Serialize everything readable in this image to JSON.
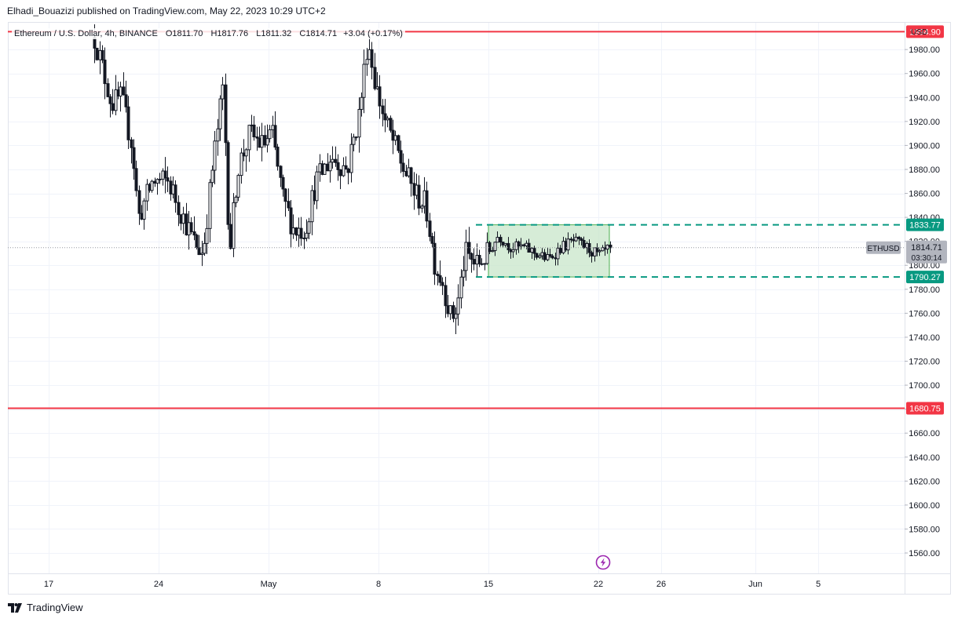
{
  "publisher": "Elhadi_Bouazizi published on TradingView.com, May 22, 2023 10:29 UTC+2",
  "legend": {
    "symbol": "Ethereum / U.S. Dollar, 4h, BINANCE",
    "o_label": "O",
    "o": "1811.70",
    "h_label": "H",
    "h": "1817.76",
    "l_label": "L",
    "l": "1811.32",
    "c_label": "C",
    "c": "1814.71",
    "change": "+3.04 (+0.17%)"
  },
  "currency": "USD",
  "footer_logo": "TradingView",
  "colors": {
    "resistance": "#f23645",
    "range": "#089981",
    "range_fill": "#c8e6c9",
    "candle": "#131722",
    "price_tag": "#b2b5be",
    "event_icon": "#9c27b0"
  },
  "chart_data": {
    "type": "candlestick",
    "symbol_tag": "ETHUSD",
    "last_price": 1814.71,
    "last_price_label": "1814.71",
    "countdown": "03:30:14",
    "ylim": [
      1543,
      2003
    ],
    "y_ticks": [
      1560,
      1580,
      1600,
      1620,
      1640,
      1660,
      1680,
      1700,
      1720,
      1740,
      1760,
      1780,
      1800,
      1820,
      1840,
      1860,
      1880,
      1900,
      1920,
      1940,
      1960,
      1980
    ],
    "y_tick_labels": [
      "1560.00",
      "1580.00",
      "1600.00",
      "1620.00",
      "1640.00",
      "1660.00",
      "1680.00",
      "1700.00",
      "1720.00",
      "1740.00",
      "1760.00",
      "1780.00",
      "1800.00",
      "1820.00",
      "1840.00",
      "1860.00",
      "1880.00",
      "1900.00",
      "1920.00",
      "1940.00",
      "1960.00",
      "1980.00"
    ],
    "x_ticks": [
      {
        "day": 17,
        "label": "17"
      },
      {
        "day": 24,
        "label": "24"
      },
      {
        "day": 31,
        "label": "May"
      },
      {
        "day": 38,
        "label": "8"
      },
      {
        "day": 45,
        "label": "15"
      },
      {
        "day": 52,
        "label": "22"
      },
      {
        "day": 56,
        "label": "26"
      },
      {
        "day": 62,
        "label": "Jun"
      },
      {
        "day": 66,
        "label": "5"
      }
    ],
    "x_unit": "days since Apr 1, 2023",
    "xlim": [
      14.4,
      71.5
    ],
    "horizontal_lines": [
      {
        "name": "resistance",
        "price": 1994.9,
        "label": "1994.90"
      },
      {
        "name": "support",
        "price": 1680.75,
        "label": "1680.75"
      }
    ],
    "range_box": {
      "top": 1833.77,
      "top_label": "1833.77",
      "bottom": 1790.27,
      "bottom_label": "1790.27",
      "x_start": 45.0,
      "x_end": 52.7,
      "line_start": 44.2
    },
    "price_path": [
      [
        19.9,
        1990
      ],
      [
        20.3,
        1970
      ],
      [
        21.0,
        1935
      ],
      [
        21.6,
        1940
      ],
      [
        22.3,
        1900
      ],
      [
        22.7,
        1840
      ],
      [
        23.6,
        1870
      ],
      [
        24.6,
        1870
      ],
      [
        25.4,
        1845
      ],
      [
        26.2,
        1820
      ],
      [
        26.8,
        1810
      ],
      [
        27.4,
        1880
      ],
      [
        28.1,
        1950
      ],
      [
        28.5,
        1810
      ],
      [
        29.0,
        1880
      ],
      [
        29.8,
        1910
      ],
      [
        30.6,
        1900
      ],
      [
        31.2,
        1910
      ],
      [
        31.9,
        1855
      ],
      [
        32.6,
        1830
      ],
      [
        33.3,
        1830
      ],
      [
        34.0,
        1870
      ],
      [
        35.0,
        1890
      ],
      [
        36.0,
        1880
      ],
      [
        36.8,
        1930
      ],
      [
        37.3,
        1990
      ],
      [
        37.8,
        1950
      ],
      [
        38.4,
        1920
      ],
      [
        39.0,
        1900
      ],
      [
        39.6,
        1880
      ],
      [
        40.3,
        1860
      ],
      [
        41.0,
        1850
      ],
      [
        41.6,
        1800
      ],
      [
        42.1,
        1785
      ],
      [
        42.6,
        1755
      ],
      [
        43.0,
        1765
      ],
      [
        43.5,
        1810
      ],
      [
        44.2,
        1800
      ],
      [
        45.0,
        1810
      ],
      [
        45.6,
        1825
      ],
      [
        46.4,
        1815
      ],
      [
        47.2,
        1815
      ],
      [
        48.0,
        1810
      ],
      [
        48.8,
        1805
      ],
      [
        49.6,
        1815
      ],
      [
        50.4,
        1820
      ],
      [
        51.2,
        1815
      ],
      [
        52.0,
        1808
      ],
      [
        52.8,
        1814.71
      ]
    ]
  }
}
